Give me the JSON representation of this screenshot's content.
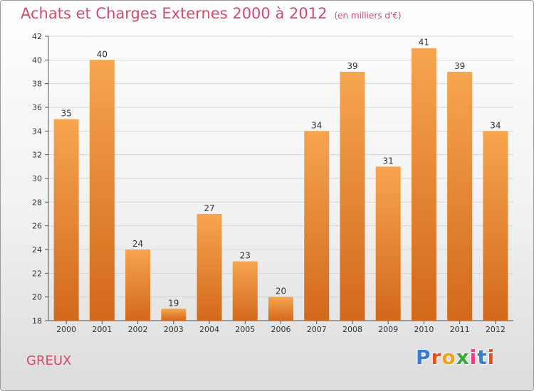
{
  "chart_data": {
    "type": "bar",
    "title": "Achats et Charges Externes 2000 à 2012",
    "unit_note": "(en milliers d'€)",
    "location": "GREUX",
    "logo": "Proxiti",
    "categories": [
      "2000",
      "2001",
      "2002",
      "2003",
      "2004",
      "2005",
      "2006",
      "2007",
      "2008",
      "2009",
      "2010",
      "2011",
      "2012"
    ],
    "values": [
      35,
      40,
      24,
      19,
      27,
      23,
      20,
      34,
      39,
      31,
      41,
      39,
      34
    ],
    "ylim": [
      18,
      42
    ],
    "yticks": [
      18,
      20,
      22,
      24,
      26,
      28,
      30,
      32,
      34,
      36,
      38,
      40,
      42
    ],
    "grid": true,
    "xlabel": "",
    "ylabel": "",
    "colors": {
      "bar_top": "#f7a54f",
      "bar_bottom": "#d2691a",
      "title": "#d44a6a"
    },
    "logo_colors": [
      "#3a7bd5",
      "#e8501a",
      "#f0a020",
      "#3aa83a",
      "#e83a8a",
      "#3a7bd5",
      "#e8501a"
    ]
  }
}
